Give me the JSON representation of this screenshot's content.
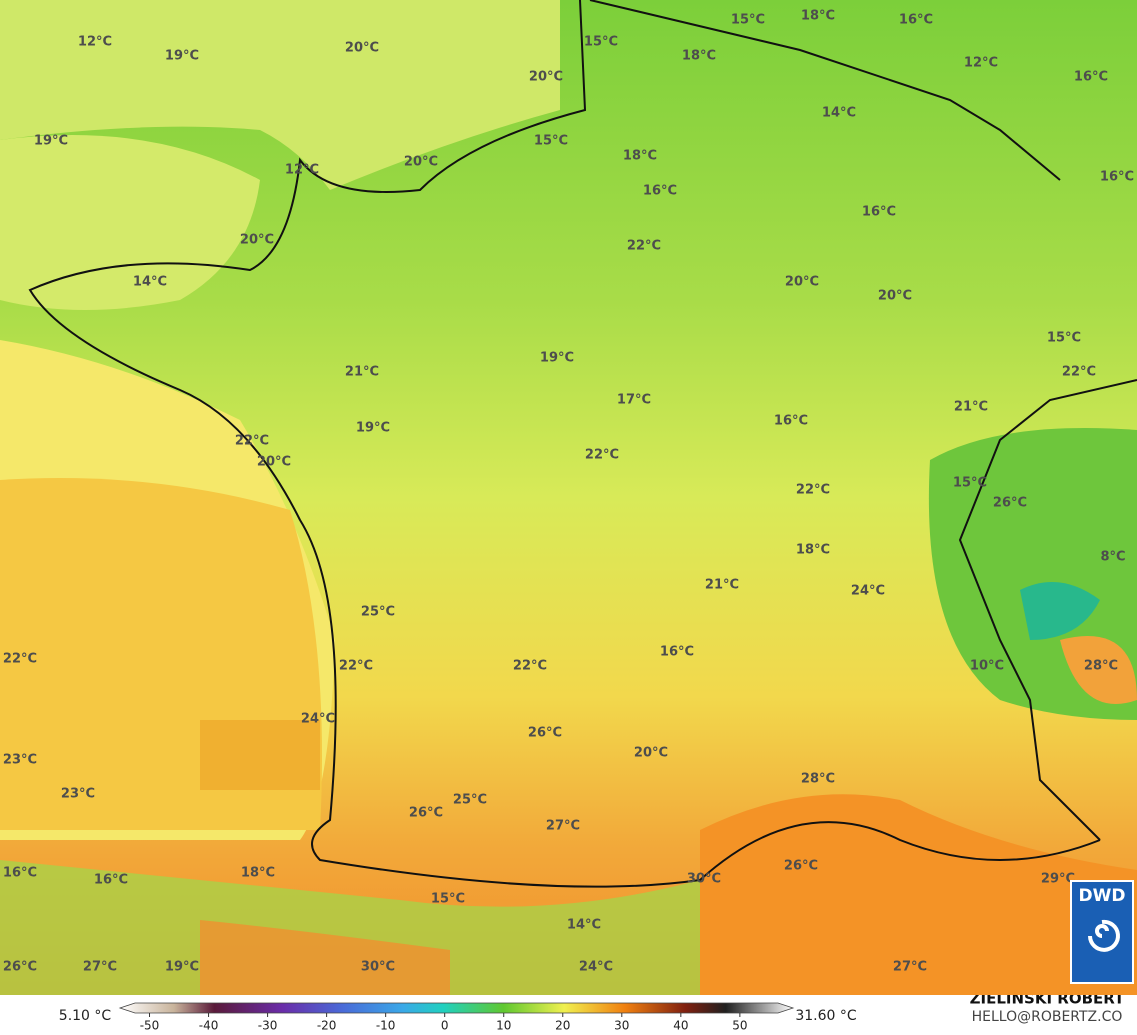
{
  "map": {
    "labels": [
      "12°C",
      "19°C",
      "20°C",
      "15°C",
      "20°C",
      "15°C",
      "18°C",
      "16°C",
      "18°C",
      "12°C",
      "16°C",
      "19°C",
      "14°C",
      "15°C",
      "18°C",
      "20°C",
      "12°C",
      "16°C",
      "16°C",
      "20°C",
      "16°C",
      "22°C",
      "14°C",
      "20°C",
      "20°C",
      "15°C",
      "19°C",
      "21°C",
      "22°C",
      "17°C",
      "21°C",
      "16°C",
      "19°C",
      "22°C",
      "20°C",
      "22°C",
      "22°C",
      "15°C",
      "26°C",
      "18°C",
      "8°C",
      "21°C",
      "24°C",
      "25°C",
      "22°C",
      "16°C",
      "22°C",
      "22°C",
      "10°C",
      "28°C",
      "24°C",
      "26°C",
      "20°C",
      "23°C",
      "28°C",
      "23°C",
      "25°C",
      "26°C",
      "27°C",
      "16°C",
      "16°C",
      "18°C",
      "30°C",
      "26°C",
      "29°C",
      "15°C",
      "14°C",
      "26°C",
      "27°C",
      "19°C",
      "30°C",
      "24°C",
      "27°C"
    ]
  },
  "colorbar": {
    "min_label": "5.10 °C",
    "max_label": "31.60 °C",
    "lim": [
      -55,
      59
    ],
    "ticks": [
      -50,
      -40,
      -30,
      -20,
      -10,
      0,
      10,
      20,
      30,
      40,
      50
    ]
  },
  "credit": {
    "author": "ZIELIŃSKI ROBERT",
    "contact": "HELLO@ROBERTZ.CO",
    "logo": "DWD"
  }
}
